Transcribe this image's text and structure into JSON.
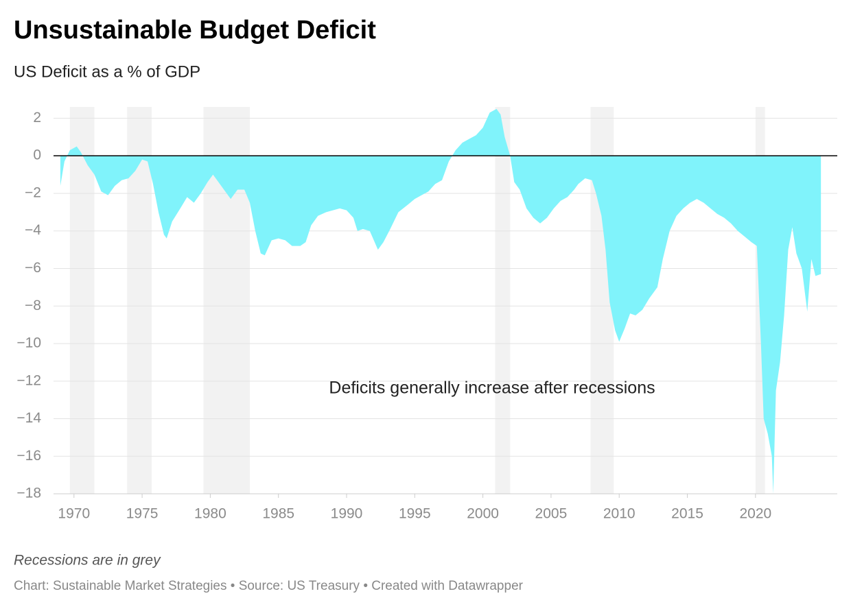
{
  "chart_data": {
    "type": "area",
    "title": "Unsustainable Budget Deficit",
    "subtitle": "US Deficit as a % of GDP",
    "annotation": "Deficits generally increase after recessions",
    "caption": "Recessions are in grey",
    "footer": "Chart: Sustainable Market Strategies • Source: US Treasury • Created with Datawrapper",
    "color": "#80f3fb",
    "recession_color": "#f2f2f2",
    "recessions": [
      [
        1969.7,
        1971.5
      ],
      [
        1973.9,
        1975.7
      ],
      [
        1979.5,
        1982.9
      ],
      [
        2000.9,
        2002.0
      ],
      [
        2007.9,
        2009.6
      ],
      [
        2020.0,
        2020.7
      ]
    ],
    "xlim": [
      1968.5,
      2026
    ],
    "xticks": [
      1970,
      1975,
      1980,
      1985,
      1990,
      1995,
      2000,
      2005,
      2010,
      2015,
      2020
    ],
    "ylim": [
      -18,
      2.6
    ],
    "yticks": [
      2,
      0,
      -2,
      -4,
      -6,
      -8,
      -10,
      -12,
      -14,
      -16,
      -18
    ],
    "grid": true,
    "x": [
      1969.0,
      1969.3,
      1969.7,
      1970.2,
      1970.5,
      1971.0,
      1971.5,
      1972.0,
      1972.5,
      1973.0,
      1973.5,
      1974.0,
      1974.5,
      1975.0,
      1975.4,
      1975.8,
      1976.2,
      1976.6,
      1976.8,
      1977.2,
      1977.8,
      1978.3,
      1978.8,
      1979.3,
      1979.8,
      1980.2,
      1980.6,
      1981.0,
      1981.5,
      1982.0,
      1982.5,
      1982.9,
      1983.3,
      1983.7,
      1984.0,
      1984.5,
      1985.0,
      1985.5,
      1986.0,
      1986.6,
      1987.0,
      1987.4,
      1987.9,
      1988.5,
      1989.0,
      1989.5,
      1990.0,
      1990.5,
      1990.8,
      1991.2,
      1991.7,
      1992.0,
      1992.3,
      1992.7,
      1993.2,
      1993.8,
      1994.5,
      1995.0,
      1995.5,
      1996.0,
      1996.5,
      1997.0,
      1997.5,
      1998.0,
      1998.5,
      1999.0,
      1999.5,
      2000.0,
      2000.5,
      2001.0,
      2001.3,
      2001.6,
      2002.0,
      2002.3,
      2002.7,
      2003.2,
      2003.7,
      2004.2,
      2004.7,
      2005.2,
      2005.7,
      2006.2,
      2006.7,
      2007.0,
      2007.5,
      2008.0,
      2008.3,
      2008.7,
      2009.0,
      2009.3,
      2009.7,
      2010.0,
      2010.4,
      2010.8,
      2011.2,
      2011.7,
      2012.2,
      2012.8,
      2013.2,
      2013.7,
      2014.2,
      2014.7,
      2015.2,
      2015.7,
      2016.2,
      2016.7,
      2017.2,
      2017.7,
      2018.2,
      2018.7,
      2019.2,
      2019.7,
      2020.1,
      2020.4,
      2020.6,
      2020.9,
      2021.2,
      2021.3,
      2021.5,
      2021.8,
      2022.1,
      2022.4,
      2022.7,
      2023.0,
      2023.4,
      2023.8,
      2024.1,
      2024.4,
      2024.8
    ],
    "values": [
      -1.6,
      -0.3,
      0.3,
      0.5,
      0.2,
      -0.5,
      -1.0,
      -1.9,
      -2.1,
      -1.6,
      -1.3,
      -1.2,
      -0.8,
      -0.2,
      -0.3,
      -1.5,
      -3.0,
      -4.2,
      -4.4,
      -3.5,
      -2.8,
      -2.2,
      -2.5,
      -2.0,
      -1.4,
      -1.0,
      -1.4,
      -1.8,
      -2.3,
      -1.8,
      -1.8,
      -2.5,
      -4.0,
      -5.2,
      -5.3,
      -4.5,
      -4.4,
      -4.5,
      -4.8,
      -4.8,
      -4.6,
      -3.7,
      -3.2,
      -3.0,
      -2.9,
      -2.8,
      -2.9,
      -3.3,
      -4.0,
      -3.9,
      -4.0,
      -4.5,
      -5.0,
      -4.6,
      -3.9,
      -3.0,
      -2.6,
      -2.3,
      -2.1,
      -1.9,
      -1.5,
      -1.3,
      -0.3,
      0.3,
      0.7,
      0.9,
      1.1,
      1.5,
      2.3,
      2.5,
      2.2,
      1.0,
      0.0,
      -1.4,
      -1.8,
      -2.8,
      -3.3,
      -3.6,
      -3.3,
      -2.8,
      -2.4,
      -2.2,
      -1.8,
      -1.5,
      -1.2,
      -1.3,
      -2.0,
      -3.2,
      -5.0,
      -7.8,
      -9.3,
      -9.9,
      -9.2,
      -8.4,
      -8.5,
      -8.2,
      -7.6,
      -7.0,
      -5.5,
      -4.0,
      -3.2,
      -2.8,
      -2.5,
      -2.3,
      -2.5,
      -2.8,
      -3.1,
      -3.3,
      -3.6,
      -4.0,
      -4.3,
      -4.6,
      -4.8,
      -10.0,
      -14.0,
      -14.8,
      -16.0,
      -18.0,
      -12.5,
      -11.0,
      -8.5,
      -5.0,
      -3.8,
      -5.2,
      -6.0,
      -8.3,
      -5.5,
      -6.4,
      -6.3
    ]
  }
}
